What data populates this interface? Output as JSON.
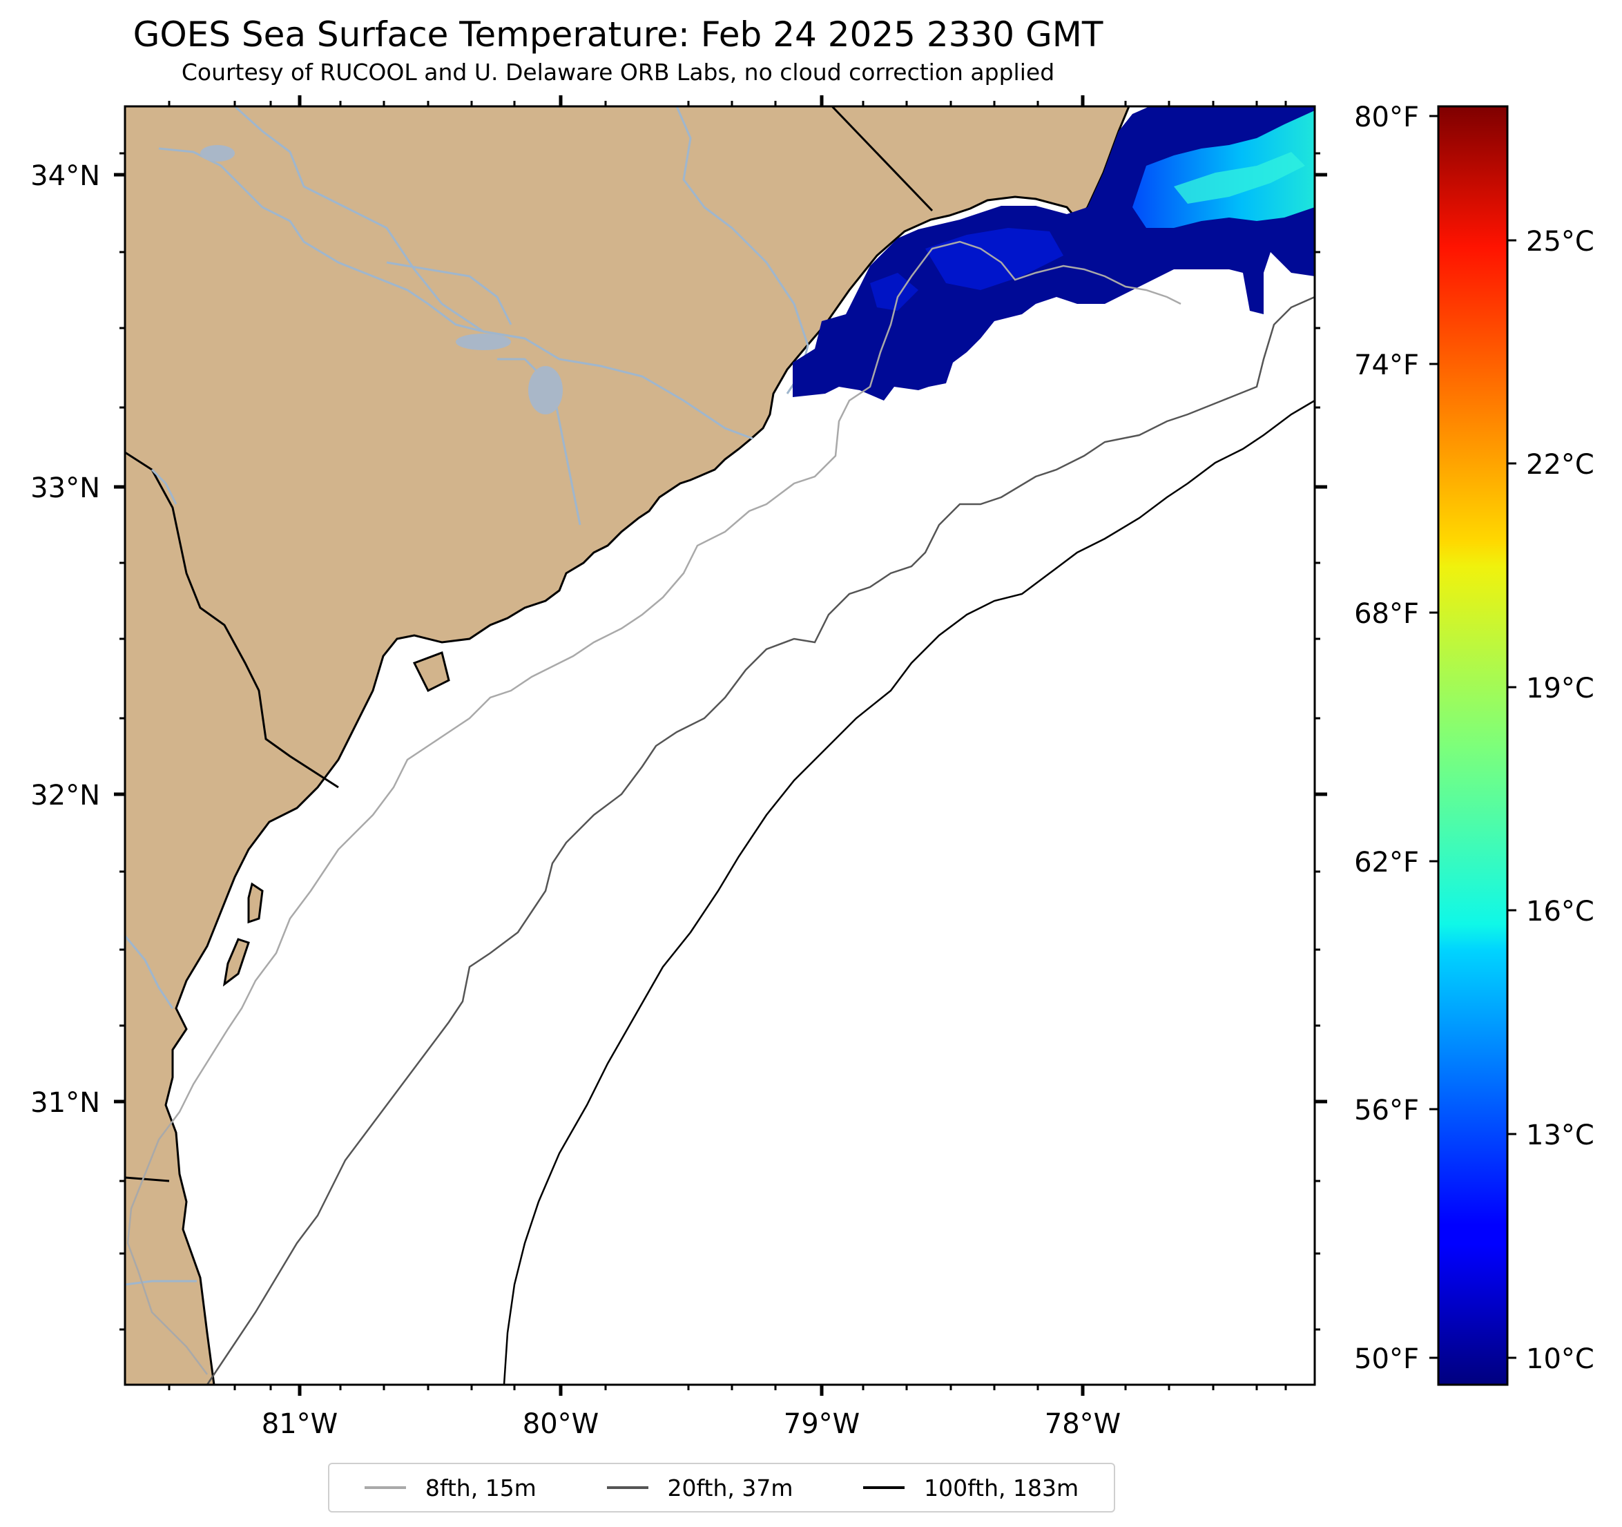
{
  "map": {
    "title": "GOES Sea Surface Temperature: Feb 24 2025 2330 GMT",
    "subtitle": "Courtesy of RUCOOL and U. Delaware ORB Labs, no cloud correction applied",
    "land_color": "#d2b48c",
    "river_color": "#9fb6cd",
    "lat_labels": [
      "34°N",
      "33°N",
      "32°N",
      "31°N"
    ],
    "lon_labels": [
      "81°W",
      "80°W",
      "79°W",
      "78°W"
    ]
  },
  "colorbar": {
    "fahrenheit_labels": [
      "80°F",
      "74°F",
      "68°F",
      "62°F",
      "56°F",
      "50°F"
    ],
    "celsius_labels": [
      "25°C",
      "22°C",
      "19°C",
      "16°C",
      "13°C",
      "10°C"
    ],
    "colormap": "jet"
  },
  "legend": {
    "items": [
      {
        "label": "8fth, 15m",
        "color": "#a9a9a9"
      },
      {
        "label": "20fth, 37m",
        "color": "#555555"
      },
      {
        "label": "100fth, 183m",
        "color": "#000000"
      }
    ]
  }
}
